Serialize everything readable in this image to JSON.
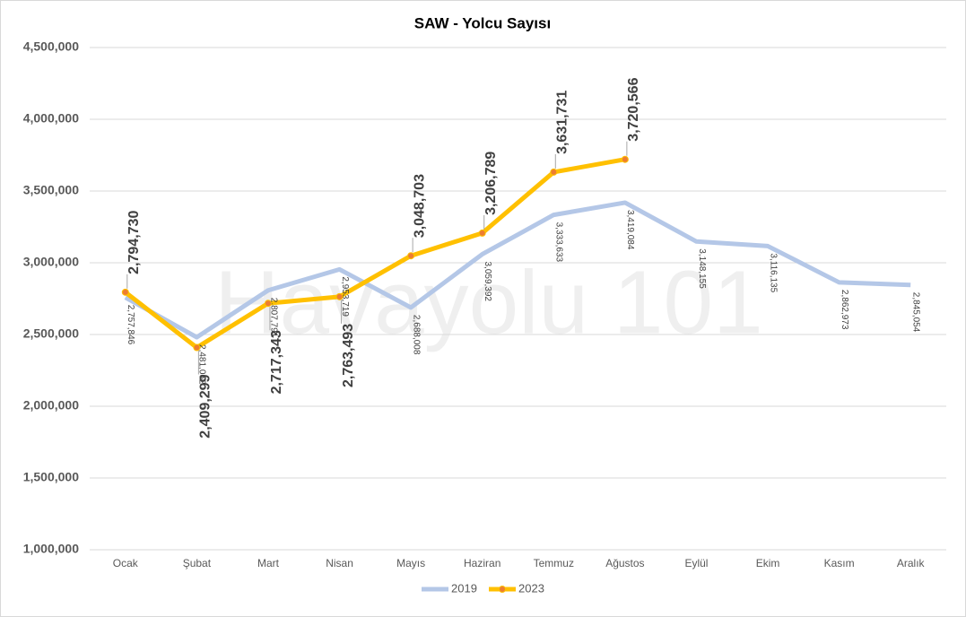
{
  "chart_data": {
    "type": "line",
    "title": "SAW - Yolcu Sayısı",
    "watermark": "Havayolu 101",
    "categories": [
      "Ocak",
      "Şubat",
      "Mart",
      "Nisan",
      "Mayıs",
      "Haziran",
      "Temmuz",
      "Ağustos",
      "Eylül",
      "Ekim",
      "Kasım",
      "Aralık"
    ],
    "series": [
      {
        "name": "2019",
        "color": "#b4c7e7",
        "values": [
          2757846,
          2481062,
          2807791,
          2953719,
          2688008,
          3059392,
          3333633,
          3419084,
          3148155,
          3116135,
          2862973,
          2845054
        ],
        "value_labels": [
          "2,757,846",
          "2,481,062",
          "2,807,791",
          "2,953,719",
          "2,688,008",
          "3,059,392",
          "3,333,633",
          "3,419,084",
          "3,148,155",
          "3,116,135",
          "2,862,973",
          "2,845,054"
        ]
      },
      {
        "name": "2023",
        "color": "#ffc000",
        "marker_color": "#ed7d31",
        "values": [
          2794730,
          2409299,
          2717343,
          2763493,
          3048703,
          3206789,
          3631731,
          3720566,
          null,
          null,
          null,
          null
        ],
        "value_labels": [
          "2,794,730",
          "2,409,299",
          "2,717,343",
          "2,763,493",
          "3,048,703",
          "3,206,789",
          "3,631,731",
          "3,720,566",
          null,
          null,
          null,
          null
        ]
      }
    ],
    "ylim": [
      1000000,
      4500000
    ],
    "yticks": [
      {
        "value": 1000000,
        "label": "1,000,000"
      },
      {
        "value": 1500000,
        "label": "1,500,000"
      },
      {
        "value": 2000000,
        "label": "2,000,000"
      },
      {
        "value": 2500000,
        "label": "2,500,000"
      },
      {
        "value": 3000000,
        "label": "3,000,000"
      },
      {
        "value": 3500000,
        "label": "3,500,000"
      },
      {
        "value": 4000000,
        "label": "4,000,000"
      },
      {
        "value": 4500000,
        "label": "4,500,000"
      }
    ],
    "grid": true,
    "legend": "bottom"
  }
}
